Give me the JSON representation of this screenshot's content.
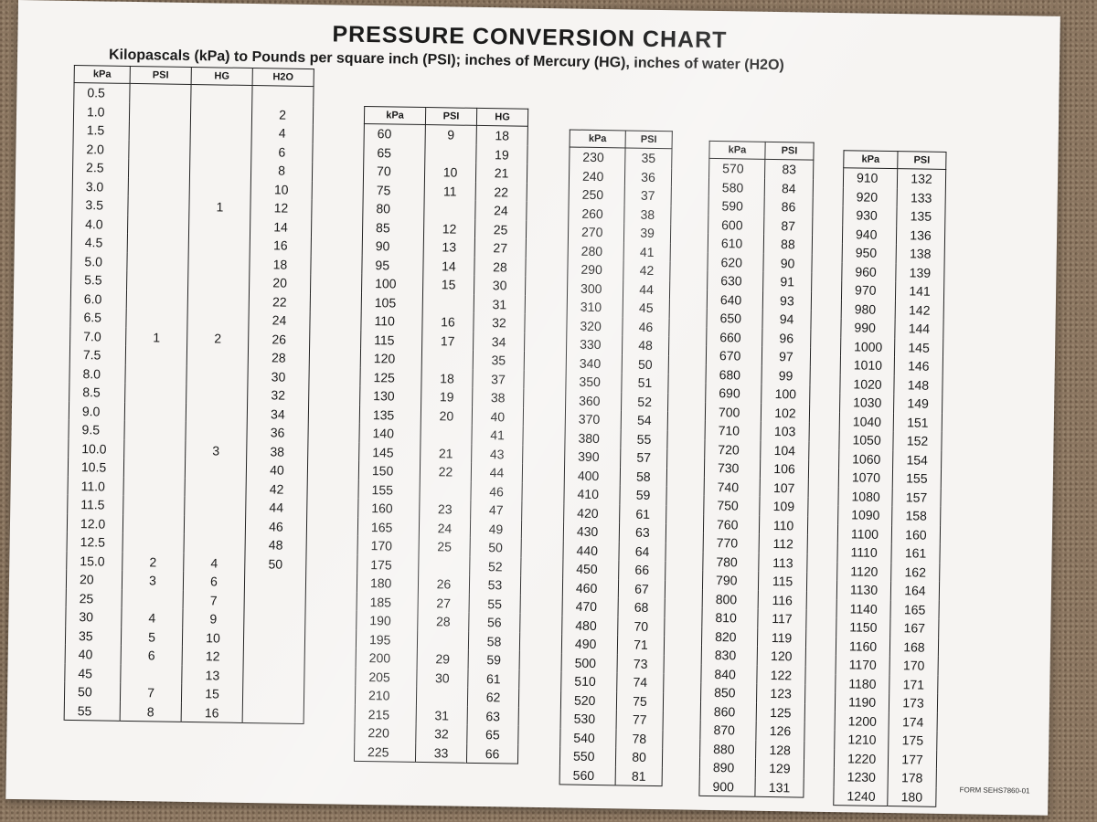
{
  "title": "PRESSURE CONVERSION CHART",
  "subtitle": "Kilopascals (kPa) to Pounds per square inch (PSI); inches of Mercury (HG), inches of water (H2O)",
  "form_code": "FORM SEHS7860-01",
  "tables": [
    {
      "headers": [
        "kPa",
        "PSI",
        "HG",
        "H2O"
      ],
      "rows": [
        [
          "0.5",
          "",
          "",
          ""
        ],
        [
          "1.0",
          "",
          "",
          "2"
        ],
        [
          "1.5",
          "",
          "",
          "4"
        ],
        [
          "2.0",
          "",
          "",
          "6"
        ],
        [
          "2.5",
          "",
          "",
          "8"
        ],
        [
          "3.0",
          "",
          "",
          "10"
        ],
        [
          "3.5",
          "",
          "1",
          "12"
        ],
        [
          "4.0",
          "",
          "",
          "14"
        ],
        [
          "4.5",
          "",
          "",
          "16"
        ],
        [
          "5.0",
          "",
          "",
          "18"
        ],
        [
          "5.5",
          "",
          "",
          "20"
        ],
        [
          "6.0",
          "",
          "",
          "22"
        ],
        [
          "6.5",
          "",
          "",
          "24"
        ],
        [
          "7.0",
          "1",
          "2",
          "26"
        ],
        [
          "7.5",
          "",
          "",
          "28"
        ],
        [
          "8.0",
          "",
          "",
          "30"
        ],
        [
          "8.5",
          "",
          "",
          "32"
        ],
        [
          "9.0",
          "",
          "",
          "34"
        ],
        [
          "9.5",
          "",
          "",
          "36"
        ],
        [
          "10.0",
          "",
          "3",
          "38"
        ],
        [
          "10.5",
          "",
          "",
          "40"
        ],
        [
          "11.0",
          "",
          "",
          "42"
        ],
        [
          "11.5",
          "",
          "",
          "44"
        ],
        [
          "12.0",
          "",
          "",
          "46"
        ],
        [
          "12.5",
          "",
          "",
          "48"
        ],
        [
          "15.0",
          "2",
          "4",
          "50"
        ],
        [
          "20",
          "3",
          "6",
          ""
        ],
        [
          "25",
          "",
          "7",
          ""
        ],
        [
          "30",
          "4",
          "9",
          ""
        ],
        [
          "35",
          "5",
          "10",
          ""
        ],
        [
          "40",
          "6",
          "12",
          ""
        ],
        [
          "45",
          "",
          "13",
          ""
        ],
        [
          "50",
          "7",
          "15",
          ""
        ],
        [
          "55",
          "8",
          "16",
          ""
        ]
      ]
    },
    {
      "headers": [
        "kPa",
        "PSI",
        "HG"
      ],
      "rows": [
        [
          "60",
          "9",
          "18"
        ],
        [
          "65",
          "",
          "19"
        ],
        [
          "70",
          "10",
          "21"
        ],
        [
          "75",
          "11",
          "22"
        ],
        [
          "80",
          "",
          "24"
        ],
        [
          "85",
          "12",
          "25"
        ],
        [
          "90",
          "13",
          "27"
        ],
        [
          "95",
          "14",
          "28"
        ],
        [
          "100",
          "15",
          "30"
        ],
        [
          "105",
          "",
          "31"
        ],
        [
          "110",
          "16",
          "32"
        ],
        [
          "115",
          "17",
          "34"
        ],
        [
          "120",
          "",
          "35"
        ],
        [
          "125",
          "18",
          "37"
        ],
        [
          "130",
          "19",
          "38"
        ],
        [
          "135",
          "20",
          "40"
        ],
        [
          "140",
          "",
          "41"
        ],
        [
          "145",
          "21",
          "43"
        ],
        [
          "150",
          "22",
          "44"
        ],
        [
          "155",
          "",
          "46"
        ],
        [
          "160",
          "23",
          "47"
        ],
        [
          "165",
          "24",
          "49"
        ],
        [
          "170",
          "25",
          "50"
        ],
        [
          "175",
          "",
          "52"
        ],
        [
          "180",
          "26",
          "53"
        ],
        [
          "185",
          "27",
          "55"
        ],
        [
          "190",
          "28",
          "56"
        ],
        [
          "195",
          "",
          "58"
        ],
        [
          "200",
          "29",
          "59"
        ],
        [
          "205",
          "30",
          "61"
        ],
        [
          "210",
          "",
          "62"
        ],
        [
          "215",
          "31",
          "63"
        ],
        [
          "220",
          "32",
          "65"
        ],
        [
          "225",
          "33",
          "66"
        ]
      ]
    },
    {
      "headers": [
        "kPa",
        "PSI"
      ],
      "rows": [
        [
          "230",
          "35"
        ],
        [
          "240",
          "36"
        ],
        [
          "250",
          "37"
        ],
        [
          "260",
          "38"
        ],
        [
          "270",
          "39"
        ],
        [
          "280",
          "41"
        ],
        [
          "290",
          "42"
        ],
        [
          "300",
          "44"
        ],
        [
          "310",
          "45"
        ],
        [
          "320",
          "46"
        ],
        [
          "330",
          "48"
        ],
        [
          "340",
          "50"
        ],
        [
          "350",
          "51"
        ],
        [
          "360",
          "52"
        ],
        [
          "370",
          "54"
        ],
        [
          "380",
          "55"
        ],
        [
          "390",
          "57"
        ],
        [
          "400",
          "58"
        ],
        [
          "410",
          "59"
        ],
        [
          "420",
          "61"
        ],
        [
          "430",
          "63"
        ],
        [
          "440",
          "64"
        ],
        [
          "450",
          "66"
        ],
        [
          "460",
          "67"
        ],
        [
          "470",
          "68"
        ],
        [
          "480",
          "70"
        ],
        [
          "490",
          "71"
        ],
        [
          "500",
          "73"
        ],
        [
          "510",
          "74"
        ],
        [
          "520",
          "75"
        ],
        [
          "530",
          "77"
        ],
        [
          "540",
          "78"
        ],
        [
          "550",
          "80"
        ],
        [
          "560",
          "81"
        ]
      ]
    },
    {
      "headers": [
        "kPa",
        "PSI"
      ],
      "rows": [
        [
          "570",
          "83"
        ],
        [
          "580",
          "84"
        ],
        [
          "590",
          "86"
        ],
        [
          "600",
          "87"
        ],
        [
          "610",
          "88"
        ],
        [
          "620",
          "90"
        ],
        [
          "630",
          "91"
        ],
        [
          "640",
          "93"
        ],
        [
          "650",
          "94"
        ],
        [
          "660",
          "96"
        ],
        [
          "670",
          "97"
        ],
        [
          "680",
          "99"
        ],
        [
          "690",
          "100"
        ],
        [
          "700",
          "102"
        ],
        [
          "710",
          "103"
        ],
        [
          "720",
          "104"
        ],
        [
          "730",
          "106"
        ],
        [
          "740",
          "107"
        ],
        [
          "750",
          "109"
        ],
        [
          "760",
          "110"
        ],
        [
          "770",
          "112"
        ],
        [
          "780",
          "113"
        ],
        [
          "790",
          "115"
        ],
        [
          "800",
          "116"
        ],
        [
          "810",
          "117"
        ],
        [
          "820",
          "119"
        ],
        [
          "830",
          "120"
        ],
        [
          "840",
          "122"
        ],
        [
          "850",
          "123"
        ],
        [
          "860",
          "125"
        ],
        [
          "870",
          "126"
        ],
        [
          "880",
          "128"
        ],
        [
          "890",
          "129"
        ],
        [
          "900",
          "131"
        ]
      ]
    },
    {
      "headers": [
        "kPa",
        "PSI"
      ],
      "rows": [
        [
          "910",
          "132"
        ],
        [
          "920",
          "133"
        ],
        [
          "930",
          "135"
        ],
        [
          "940",
          "136"
        ],
        [
          "950",
          "138"
        ],
        [
          "960",
          "139"
        ],
        [
          "970",
          "141"
        ],
        [
          "980",
          "142"
        ],
        [
          "990",
          "144"
        ],
        [
          "1000",
          "145"
        ],
        [
          "1010",
          "146"
        ],
        [
          "1020",
          "148"
        ],
        [
          "1030",
          "149"
        ],
        [
          "1040",
          "151"
        ],
        [
          "1050",
          "152"
        ],
        [
          "1060",
          "154"
        ],
        [
          "1070",
          "155"
        ],
        [
          "1080",
          "157"
        ],
        [
          "1090",
          "158"
        ],
        [
          "1100",
          "160"
        ],
        [
          "1110",
          "161"
        ],
        [
          "1120",
          "162"
        ],
        [
          "1130",
          "164"
        ],
        [
          "1140",
          "165"
        ],
        [
          "1150",
          "167"
        ],
        [
          "1160",
          "168"
        ],
        [
          "1170",
          "170"
        ],
        [
          "1180",
          "171"
        ],
        [
          "1190",
          "173"
        ],
        [
          "1200",
          "174"
        ],
        [
          "1210",
          "175"
        ],
        [
          "1220",
          "177"
        ],
        [
          "1230",
          "178"
        ],
        [
          "1240",
          "180"
        ]
      ]
    }
  ]
}
